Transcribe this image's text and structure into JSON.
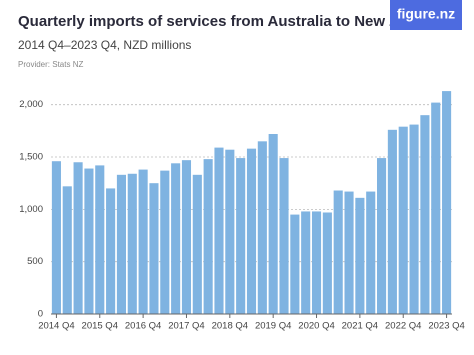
{
  "chart_data": {
    "type": "bar",
    "title": "Quarterly imports of services from Australia to New Zealand",
    "subtitle": "2014 Q4–2023 Q4, NZD millions",
    "source": "Provider: Stats NZ",
    "logo": "figure.nz",
    "categories": [
      "2014 Q4",
      null,
      null,
      null,
      "2015 Q4",
      null,
      null,
      null,
      "2016 Q4",
      null,
      null,
      null,
      "2017 Q4",
      null,
      null,
      null,
      "2018 Q4",
      null,
      null,
      null,
      "2019 Q4",
      null,
      null,
      null,
      "2020 Q4",
      null,
      null,
      null,
      "2021 Q4",
      null,
      null,
      null,
      "2022 Q4",
      null,
      null,
      null,
      "2023 Q4"
    ],
    "values": [
      1460,
      1220,
      1450,
      1390,
      1420,
      1200,
      1330,
      1340,
      1380,
      1250,
      1370,
      1440,
      1470,
      1330,
      1480,
      1590,
      1570,
      1490,
      1580,
      1650,
      1720,
      1490,
      950,
      980,
      980,
      970,
      1180,
      1170,
      1110,
      1170,
      1490,
      1760,
      1790,
      1810,
      1900,
      2020,
      2130
    ],
    "color": "#7fb3e1",
    "ylim": [
      0,
      2150
    ],
    "yticks": [
      0,
      500,
      {
        "value": 1000,
        "label": "1,000"
      },
      {
        "value": 1500,
        "label": "1,500"
      },
      {
        "value": 2000,
        "label": "2,000"
      }
    ],
    "grid": true
  }
}
